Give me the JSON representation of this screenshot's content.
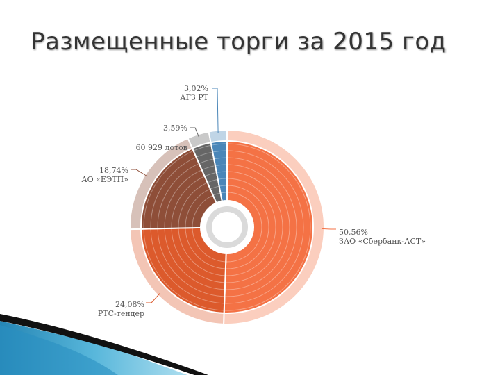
{
  "slide": {
    "title": "Размещенные торги за 2015 год"
  },
  "chart_data": {
    "type": "pie",
    "style": "donut",
    "title": "",
    "total_label": "60 929 лотов",
    "slices": [
      {
        "label": "ЗАО «Сбербанк-АСТ»",
        "value": 50.56,
        "display": "50,56%",
        "color": "#f47245"
      },
      {
        "label": "РТС-тендер",
        "value": 24.08,
        "display": "24,08%",
        "color": "#dc5a2c"
      },
      {
        "label": "АО «ЕЭТП»",
        "value": 18.74,
        "display": "18,74%",
        "color": "#8e4e38"
      },
      {
        "label": "",
        "value": 3.59,
        "display": "3,59%",
        "color": "#666666"
      },
      {
        "label": "АГЗ РТ",
        "value": 3.02,
        "display": "3,02%",
        "color": "#4a86b8"
      }
    ],
    "legend": "none",
    "colors": {
      "outer_ring_tint": "#f6c9b8",
      "center": "#dadada"
    }
  }
}
